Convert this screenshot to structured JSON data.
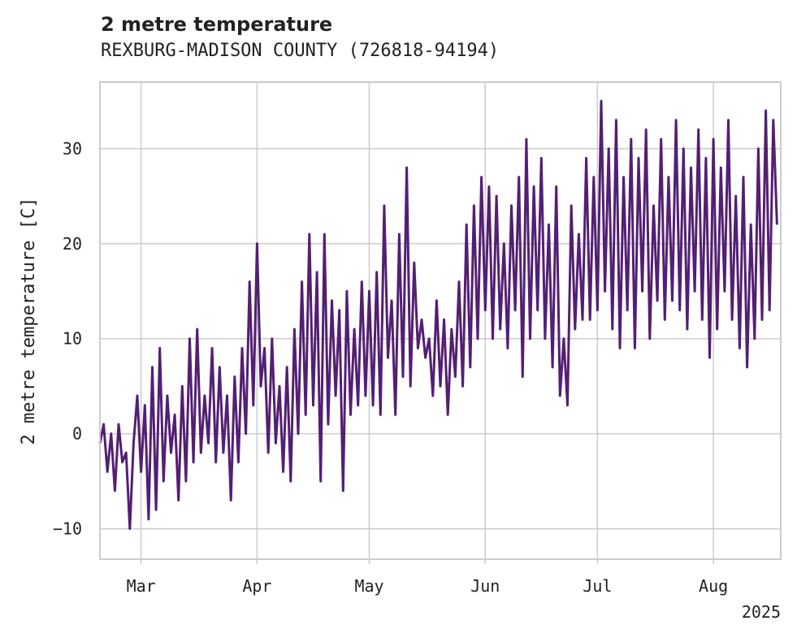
{
  "chart_data": {
    "type": "line",
    "title": "2 metre temperature",
    "subtitle": "REXBURG-MADISON COUNTY (726818-94194)",
    "ylabel": "2 metre temperature [C]",
    "xlabel": "",
    "x_ticks": [
      "Mar",
      "Apr",
      "May",
      "Jun",
      "Jul",
      "Aug"
    ],
    "x_offset_label": "2025",
    "y_ticks": [
      -10,
      0,
      10,
      20,
      30
    ],
    "ylim": [
      -13.2,
      37
    ],
    "xlim": [
      "2025-02-18",
      "2025-08-19"
    ],
    "grid": true,
    "line_color": "#541f73",
    "series": [
      {
        "points": [
          [
            "2025-02-18",
            -1
          ],
          [
            "2025-02-19",
            1
          ],
          [
            "2025-02-20",
            -4
          ],
          [
            "2025-02-21",
            0
          ],
          [
            "2025-02-22",
            -6
          ],
          [
            "2025-02-23",
            1
          ],
          [
            "2025-02-24",
            -3
          ],
          [
            "2025-02-25",
            -2
          ],
          [
            "2025-02-26",
            -10
          ],
          [
            "2025-02-27",
            -1
          ],
          [
            "2025-02-28",
            4
          ],
          [
            "2025-03-01",
            -4
          ],
          [
            "2025-03-02",
            3
          ],
          [
            "2025-03-03",
            -9
          ],
          [
            "2025-03-04",
            7
          ],
          [
            "2025-03-05",
            -8
          ],
          [
            "2025-03-06",
            9
          ],
          [
            "2025-03-07",
            -5
          ],
          [
            "2025-03-08",
            4
          ],
          [
            "2025-03-09",
            -2
          ],
          [
            "2025-03-10",
            2
          ],
          [
            "2025-03-11",
            -7
          ],
          [
            "2025-03-12",
            5
          ],
          [
            "2025-03-13",
            -5
          ],
          [
            "2025-03-14",
            10
          ],
          [
            "2025-03-15",
            -3
          ],
          [
            "2025-03-16",
            11
          ],
          [
            "2025-03-17",
            -2
          ],
          [
            "2025-03-18",
            4
          ],
          [
            "2025-03-19",
            -1
          ],
          [
            "2025-03-20",
            9
          ],
          [
            "2025-03-21",
            -3
          ],
          [
            "2025-03-22",
            7
          ],
          [
            "2025-03-23",
            -2
          ],
          [
            "2025-03-24",
            4
          ],
          [
            "2025-03-25",
            -7
          ],
          [
            "2025-03-26",
            6
          ],
          [
            "2025-03-27",
            -3
          ],
          [
            "2025-03-28",
            9
          ],
          [
            "2025-03-29",
            0
          ],
          [
            "2025-03-30",
            16
          ],
          [
            "2025-03-31",
            3
          ],
          [
            "2025-04-01",
            20
          ],
          [
            "2025-04-02",
            5
          ],
          [
            "2025-04-03",
            9
          ],
          [
            "2025-04-04",
            -2
          ],
          [
            "2025-04-05",
            10
          ],
          [
            "2025-04-06",
            -1
          ],
          [
            "2025-04-07",
            5
          ],
          [
            "2025-04-08",
            -4
          ],
          [
            "2025-04-09",
            7
          ],
          [
            "2025-04-10",
            -5
          ],
          [
            "2025-04-11",
            11
          ],
          [
            "2025-04-12",
            0
          ],
          [
            "2025-04-13",
            16
          ],
          [
            "2025-04-14",
            2
          ],
          [
            "2025-04-15",
            21
          ],
          [
            "2025-04-16",
            3
          ],
          [
            "2025-04-17",
            17
          ],
          [
            "2025-04-18",
            -5
          ],
          [
            "2025-04-19",
            21
          ],
          [
            "2025-04-20",
            1
          ],
          [
            "2025-04-21",
            14
          ],
          [
            "2025-04-22",
            4
          ],
          [
            "2025-04-23",
            13
          ],
          [
            "2025-04-24",
            -6
          ],
          [
            "2025-04-25",
            15
          ],
          [
            "2025-04-26",
            2
          ],
          [
            "2025-04-27",
            11
          ],
          [
            "2025-04-28",
            3
          ],
          [
            "2025-04-29",
            16
          ],
          [
            "2025-04-30",
            4
          ],
          [
            "2025-05-01",
            15
          ],
          [
            "2025-05-02",
            3
          ],
          [
            "2025-05-03",
            17
          ],
          [
            "2025-05-04",
            2
          ],
          [
            "2025-05-05",
            24
          ],
          [
            "2025-05-06",
            8
          ],
          [
            "2025-05-07",
            14
          ],
          [
            "2025-05-08",
            2
          ],
          [
            "2025-05-09",
            21
          ],
          [
            "2025-05-10",
            6
          ],
          [
            "2025-05-11",
            28
          ],
          [
            "2025-05-12",
            5
          ],
          [
            "2025-05-13",
            18
          ],
          [
            "2025-05-14",
            9
          ],
          [
            "2025-05-15",
            12
          ],
          [
            "2025-05-16",
            8
          ],
          [
            "2025-05-17",
            10
          ],
          [
            "2025-05-18",
            4
          ],
          [
            "2025-05-19",
            14
          ],
          [
            "2025-05-20",
            5
          ],
          [
            "2025-05-21",
            12
          ],
          [
            "2025-05-22",
            2
          ],
          [
            "2025-05-23",
            11
          ],
          [
            "2025-05-24",
            6
          ],
          [
            "2025-05-25",
            16
          ],
          [
            "2025-05-26",
            5
          ],
          [
            "2025-05-27",
            22
          ],
          [
            "2025-05-28",
            7
          ],
          [
            "2025-05-29",
            24
          ],
          [
            "2025-05-30",
            10
          ],
          [
            "2025-05-31",
            27
          ],
          [
            "2025-06-01",
            13
          ],
          [
            "2025-06-02",
            26
          ],
          [
            "2025-06-03",
            10
          ],
          [
            "2025-06-04",
            25
          ],
          [
            "2025-06-05",
            11
          ],
          [
            "2025-06-06",
            20
          ],
          [
            "2025-06-07",
            9
          ],
          [
            "2025-06-08",
            24
          ],
          [
            "2025-06-09",
            13
          ],
          [
            "2025-06-10",
            27
          ],
          [
            "2025-06-11",
            6
          ],
          [
            "2025-06-12",
            31
          ],
          [
            "2025-06-13",
            10
          ],
          [
            "2025-06-14",
            26
          ],
          [
            "2025-06-15",
            13
          ],
          [
            "2025-06-16",
            29
          ],
          [
            "2025-06-17",
            10
          ],
          [
            "2025-06-18",
            22
          ],
          [
            "2025-06-19",
            7
          ],
          [
            "2025-06-20",
            26
          ],
          [
            "2025-06-21",
            4
          ],
          [
            "2025-06-22",
            10
          ],
          [
            "2025-06-23",
            3
          ],
          [
            "2025-06-24",
            24
          ],
          [
            "2025-06-25",
            11
          ],
          [
            "2025-06-26",
            21
          ],
          [
            "2025-06-27",
            12
          ],
          [
            "2025-06-28",
            29
          ],
          [
            "2025-06-29",
            12
          ],
          [
            "2025-06-30",
            27
          ],
          [
            "2025-07-01",
            13
          ],
          [
            "2025-07-02",
            35
          ],
          [
            "2025-07-03",
            15
          ],
          [
            "2025-07-04",
            30
          ],
          [
            "2025-07-05",
            11
          ],
          [
            "2025-07-06",
            33
          ],
          [
            "2025-07-07",
            9
          ],
          [
            "2025-07-08",
            27
          ],
          [
            "2025-07-09",
            13
          ],
          [
            "2025-07-10",
            31
          ],
          [
            "2025-07-11",
            9
          ],
          [
            "2025-07-12",
            29
          ],
          [
            "2025-07-13",
            15
          ],
          [
            "2025-07-14",
            32
          ],
          [
            "2025-07-15",
            10
          ],
          [
            "2025-07-16",
            24
          ],
          [
            "2025-07-17",
            14
          ],
          [
            "2025-07-18",
            31
          ],
          [
            "2025-07-19",
            12
          ],
          [
            "2025-07-20",
            27
          ],
          [
            "2025-07-21",
            14
          ],
          [
            "2025-07-22",
            33
          ],
          [
            "2025-07-23",
            13
          ],
          [
            "2025-07-24",
            30
          ],
          [
            "2025-07-25",
            11
          ],
          [
            "2025-07-26",
            28
          ],
          [
            "2025-07-27",
            15
          ],
          [
            "2025-07-28",
            32
          ],
          [
            "2025-07-29",
            12
          ],
          [
            "2025-07-30",
            29
          ],
          [
            "2025-07-31",
            8
          ],
          [
            "2025-08-01",
            31
          ],
          [
            "2025-08-02",
            11
          ],
          [
            "2025-08-03",
            28
          ],
          [
            "2025-08-04",
            15
          ],
          [
            "2025-08-05",
            33
          ],
          [
            "2025-08-06",
            12
          ],
          [
            "2025-08-07",
            25
          ],
          [
            "2025-08-08",
            9
          ],
          [
            "2025-08-09",
            27
          ],
          [
            "2025-08-10",
            7
          ],
          [
            "2025-08-11",
            22
          ],
          [
            "2025-08-12",
            10
          ],
          [
            "2025-08-13",
            30
          ],
          [
            "2025-08-14",
            12
          ],
          [
            "2025-08-15",
            34
          ],
          [
            "2025-08-16",
            13
          ],
          [
            "2025-08-17",
            33
          ],
          [
            "2025-08-18",
            22
          ]
        ]
      }
    ]
  }
}
